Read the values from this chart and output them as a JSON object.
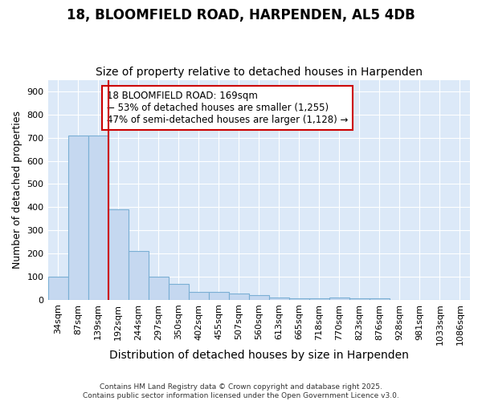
{
  "title": "18, BLOOMFIELD ROAD, HARPENDEN, AL5 4DB",
  "subtitle": "Size of property relative to detached houses in Harpenden",
  "xlabel": "Distribution of detached houses by size in Harpenden",
  "ylabel": "Number of detached properties",
  "categories": [
    "34sqm",
    "87sqm",
    "139sqm",
    "192sqm",
    "244sqm",
    "297sqm",
    "350sqm",
    "402sqm",
    "455sqm",
    "507sqm",
    "560sqm",
    "613sqm",
    "665sqm",
    "718sqm",
    "770sqm",
    "823sqm",
    "876sqm",
    "928sqm",
    "981sqm",
    "1033sqm",
    "1086sqm"
  ],
  "values": [
    100,
    710,
    710,
    390,
    210,
    100,
    70,
    35,
    35,
    25,
    20,
    10,
    5,
    5,
    10,
    5,
    5,
    0,
    0,
    0,
    0
  ],
  "bar_facecolor": "#c5d8f0",
  "bar_edgecolor": "#7aafd4",
  "vline_color": "#cc0000",
  "vline_x": 3,
  "annotation_text": "18 BLOOMFIELD ROAD: 169sqm\n← 53% of detached houses are smaller (1,255)\n47% of semi-detached houses are larger (1,128) →",
  "annotation_box_facecolor": "#ffffff",
  "annotation_box_edgecolor": "#cc0000",
  "ylim": [
    0,
    950
  ],
  "yticks": [
    0,
    100,
    200,
    300,
    400,
    500,
    600,
    700,
    800,
    900
  ],
  "bg_color": "#ffffff",
  "plot_bg_color": "#dce9f8",
  "grid_color": "#ffffff",
  "title_fontsize": 12,
  "subtitle_fontsize": 10,
  "tick_fontsize": 8,
  "ylabel_fontsize": 9,
  "xlabel_fontsize": 10,
  "footer_text": "Contains HM Land Registry data © Crown copyright and database right 2025.\nContains public sector information licensed under the Open Government Licence v3.0."
}
